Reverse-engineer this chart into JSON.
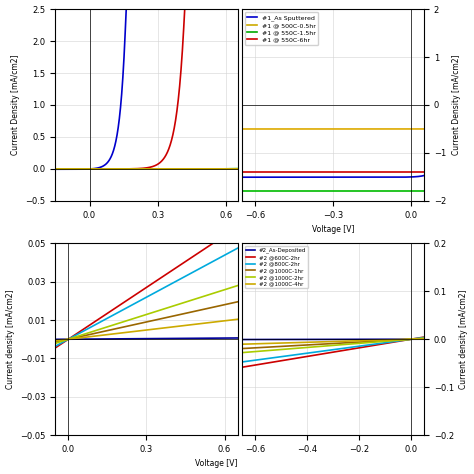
{
  "tl_ylabel": "Current Density [mA/cm2]",
  "tl_xlim": [
    -0.15,
    0.65
  ],
  "tl_ylim": [
    -0.5,
    2.5
  ],
  "tl_xticks": [
    0,
    0.3,
    0.6
  ],
  "tl_yticks": [
    -0.5,
    0,
    0.5,
    1.0,
    1.5,
    2.0,
    2.5
  ],
  "tr_ylabel": "Current Density [mA/cm2]",
  "tr_xlabel": "Voltage [V]",
  "tr_xlim": [
    -0.65,
    0.05
  ],
  "tr_ylim": [
    -2.0,
    2.0
  ],
  "tr_xticks": [
    -0.6,
    -0.3,
    0
  ],
  "tr_yticks": [
    -2,
    -1,
    0,
    1,
    2
  ],
  "tr_legend": [
    {
      "label": "#1_As Sputtered",
      "color": "#0000cc"
    },
    {
      "label": "#1 @ 500C-0.5hr",
      "color": "#ccaa00"
    },
    {
      "label": "#1 @ 550C-1.5hr",
      "color": "#00aa00"
    },
    {
      "label": "#1 @ 550C-6hr",
      "color": "#cc0000"
    }
  ],
  "bl_ylabel": "Current density [mA/cm2]",
  "bl_xlabel": "Voltage [V]",
  "bl_xlim": [
    -0.05,
    0.65
  ],
  "bl_ylim": [
    -0.05,
    0.05
  ],
  "bl_xticks": [
    0,
    0.3,
    0.6
  ],
  "bl_yticks": [
    -0.05,
    -0.03,
    -0.01,
    0.01,
    0.03,
    0.05
  ],
  "br_ylabel": "Current density [mA/cm2]",
  "br_xlim": [
    -0.65,
    0.05
  ],
  "br_ylim": [
    -0.2,
    0.2
  ],
  "br_xticks": [
    -0.6,
    -0.4,
    -0.2,
    0
  ],
  "br_yticks": [
    -0.2,
    -0.1,
    0,
    0.1,
    0.2
  ],
  "br_legend": [
    {
      "label": "#2_As-Deposited",
      "color": "#000099"
    },
    {
      "label": "#2 @600C-2hr",
      "color": "#cc0000"
    },
    {
      "label": "#2 @800C-2hr",
      "color": "#00aadd"
    },
    {
      "label": "#2 @1000C-1hr",
      "color": "#996600"
    },
    {
      "label": "#2 @1000C-2hr",
      "color": "#aacc00"
    },
    {
      "label": "#2 @1000C-4hr",
      "color": "#ccaa00"
    }
  ]
}
